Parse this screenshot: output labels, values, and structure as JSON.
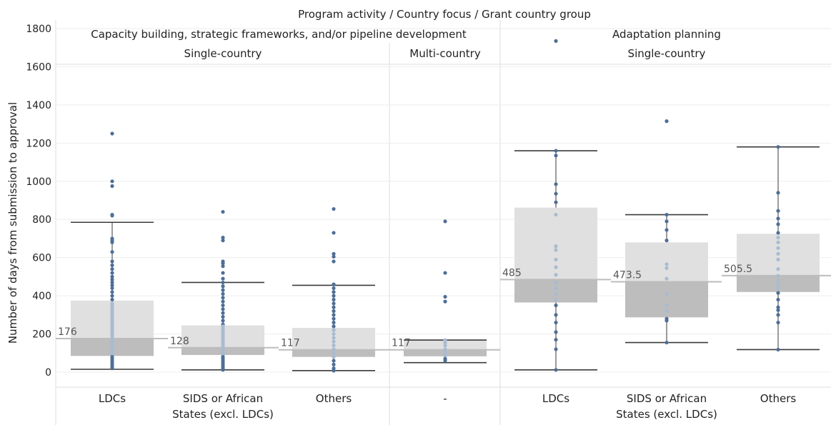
{
  "chart_data": {
    "type": "boxplot",
    "header_title": "Program activity  /  Country focus  /  Grant country group",
    "ylabel": "Number of days from submission to approval",
    "ylim": [
      -90,
      1880
    ],
    "yticks": [
      0,
      200,
      400,
      600,
      800,
      1000,
      1200,
      1400,
      1600,
      1800
    ],
    "grid": true,
    "activities": [
      {
        "label": "Capacity building, strategic frameworks, and/or pipeline development",
        "focus": [
          "Single-country",
          "Multi-country"
        ]
      },
      {
        "label": "Adaptation planning",
        "focus": [
          "Single-country"
        ]
      }
    ],
    "colors": {
      "upper_box": "#e0e0e0",
      "lower_box": "#bdbdbd",
      "point": "#4e6e95",
      "point_light": "#a8bbd2",
      "whisker": "#3a3a3a",
      "median_line": "#bdbdbd",
      "grid": "#eeeeee",
      "divider": "#dddddd"
    },
    "groups": [
      {
        "activity": 0,
        "focus": "Single-country",
        "category_lines": [
          "LDCs"
        ],
        "median": 176,
        "median_label": "176",
        "q1": 85,
        "q3": 375,
        "whisker_low": 15,
        "whisker_high": 785,
        "points": [
          1250,
          1000,
          975,
          825,
          820,
          700,
          690,
          680,
          630,
          580,
          560,
          540,
          520,
          500,
          485,
          470,
          455,
          440,
          420,
          400,
          380,
          360,
          350,
          340,
          330,
          320,
          310,
          300,
          290,
          280,
          270,
          260,
          250,
          240,
          230,
          220,
          210,
          200,
          190,
          180,
          170,
          160,
          150,
          140,
          130,
          120,
          110,
          100,
          90,
          80,
          70,
          60,
          50,
          40,
          30,
          20
        ]
      },
      {
        "activity": 0,
        "focus": "Single-country",
        "category_lines": [
          "SIDS or African",
          "States (excl. LDCs)"
        ],
        "median": 128,
        "median_label": "128",
        "q1": 90,
        "q3": 245,
        "whisker_low": 12,
        "whisker_high": 470,
        "points": [
          840,
          705,
          690,
          580,
          570,
          555,
          520,
          490,
          470,
          450,
          430,
          410,
          390,
          370,
          350,
          330,
          310,
          290,
          270,
          250,
          240,
          230,
          220,
          210,
          200,
          190,
          180,
          170,
          160,
          150,
          140,
          130,
          120,
          110,
          100,
          90,
          80,
          70,
          60,
          50,
          40,
          30,
          20,
          12
        ]
      },
      {
        "activity": 0,
        "focus": "Single-country",
        "category_lines": [
          "Others"
        ],
        "median": 117,
        "median_label": "117",
        "q1": 80,
        "q3": 232,
        "whisker_low": 8,
        "whisker_high": 455,
        "points": [
          855,
          730,
          620,
          605,
          580,
          460,
          440,
          420,
          400,
          380,
          360,
          340,
          320,
          300,
          280,
          260,
          240,
          220,
          200,
          180,
          160,
          140,
          120,
          100,
          80,
          60,
          40,
          20,
          8
        ]
      },
      {
        "activity": 0,
        "focus": "Multi-country",
        "category_lines": [
          "-"
        ],
        "median": 117,
        "median_label": "117",
        "q1": 83,
        "q3": 168,
        "whisker_low": 50,
        "whisker_high": 168,
        "points": [
          790,
          520,
          395,
          370,
          168,
          155,
          140,
          120,
          110,
          100,
          85,
          70,
          60
        ]
      },
      {
        "activity": 1,
        "focus": "Single-country",
        "category_lines": [
          "LDCs"
        ],
        "median": 485,
        "median_label": "485",
        "q1": 365,
        "q3": 862,
        "whisker_low": 12,
        "whisker_high": 1160,
        "points": [
          1735,
          1160,
          1135,
          985,
          935,
          890,
          825,
          660,
          640,
          590,
          550,
          510,
          470,
          440,
          410,
          380,
          350,
          300,
          260,
          210,
          170,
          120,
          12
        ]
      },
      {
        "activity": 1,
        "focus": "Single-country",
        "category_lines": [
          "SIDS or African",
          "States (excl. LDCs)"
        ],
        "median": 473.5,
        "median_label": "473.5",
        "q1": 287,
        "q3": 680,
        "whisker_low": 155,
        "whisker_high": 825,
        "points": [
          1315,
          825,
          790,
          745,
          690,
          565,
          545,
          490,
          410,
          350,
          320,
          280,
          270,
          155
        ]
      },
      {
        "activity": 1,
        "focus": "Single-country",
        "category_lines": [
          "Others"
        ],
        "median": 505.5,
        "median_label": "505.5",
        "q1": 420,
        "q3": 725,
        "whisker_low": 118,
        "whisker_high": 1180,
        "points": [
          1180,
          940,
          845,
          805,
          775,
          730,
          705,
          680,
          650,
          620,
          590,
          540,
          505,
          480,
          460,
          440,
          415,
          380,
          340,
          325,
          300,
          260,
          118
        ]
      }
    ]
  }
}
